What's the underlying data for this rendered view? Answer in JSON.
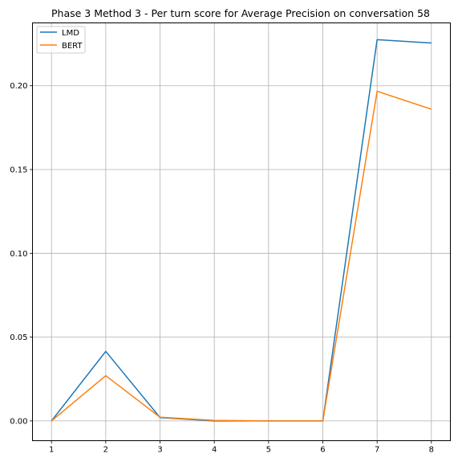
{
  "chart_data": {
    "type": "line",
    "title": "Phase 3 Method 3 - Per turn score for Average Precision on conversation 58",
    "xlabel": "",
    "ylabel": "",
    "x": [
      1,
      2,
      3,
      4,
      5,
      6,
      7,
      8
    ],
    "xlim": [
      0.65,
      8.35
    ],
    "ylim": [
      -0.0118,
      0.2375
    ],
    "x_ticks": [
      1,
      2,
      3,
      4,
      5,
      6,
      7,
      8
    ],
    "y_ticks": [
      0.0,
      0.05,
      0.1,
      0.15,
      0.2
    ],
    "y_tick_labels": [
      "0.00",
      "0.05",
      "0.10",
      "0.15",
      "0.20"
    ],
    "grid": true,
    "legend_position": "upper-left",
    "series": [
      {
        "name": "LMD",
        "color": "#1f77b4",
        "values": [
          0.0,
          0.0415,
          0.002,
          0.0,
          0.0,
          0.0,
          0.2275,
          0.2255
        ]
      },
      {
        "name": "BERT",
        "color": "#ff7f0e",
        "values": [
          0.0,
          0.027,
          0.0022,
          0.0003,
          0.0,
          0.0,
          0.1967,
          0.186
        ]
      }
    ]
  }
}
